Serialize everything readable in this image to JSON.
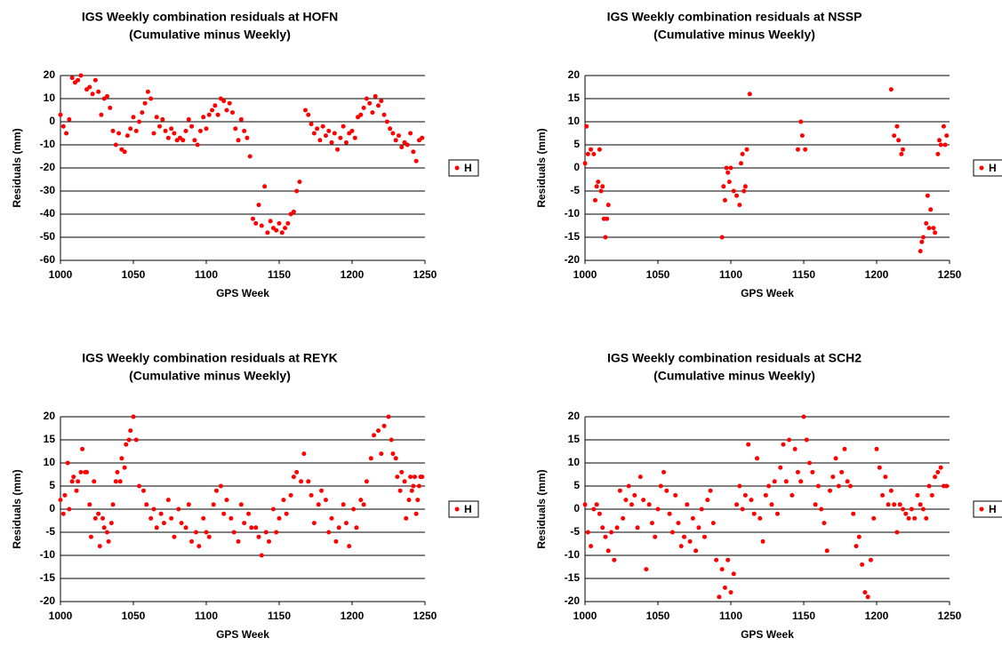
{
  "chart_data": [
    {
      "type": "scatter",
      "title": "IGS Weekly combination residuals at HOFN",
      "subtitle": "(Cumulative minus Weekly)",
      "x_label": "GPS Week",
      "y_label": "Residuals (mm)",
      "x": [
        1000,
        1002,
        1004,
        1006,
        1008,
        1010,
        1012,
        1014,
        1018,
        1020,
        1022,
        1024,
        1026,
        1028,
        1030,
        1032,
        1034,
        1036,
        1038,
        1040,
        1042,
        1044,
        1046,
        1048,
        1050,
        1052,
        1054,
        1056,
        1058,
        1060,
        1062,
        1064,
        1066,
        1068,
        1070,
        1072,
        1074,
        1076,
        1078,
        1080,
        1082,
        1084,
        1086,
        1088,
        1090,
        1092,
        1094,
        1096,
        1098,
        1100,
        1102,
        1104,
        1106,
        1108,
        1110,
        1112,
        1114,
        1116,
        1118,
        1120,
        1122,
        1124,
        1126,
        1128,
        1130,
        1132,
        1134,
        1136,
        1138,
        1140,
        1142,
        1144,
        1146,
        1148,
        1150,
        1152,
        1154,
        1156,
        1158,
        1160,
        1162,
        1164,
        1168,
        1170,
        1172,
        1174,
        1176,
        1178,
        1180,
        1182,
        1184,
        1186,
        1188,
        1190,
        1192,
        1194,
        1196,
        1198,
        1200,
        1202,
        1204,
        1206,
        1208,
        1210,
        1212,
        1214,
        1216,
        1218,
        1220,
        1222,
        1224,
        1226,
        1228,
        1230,
        1232,
        1234,
        1236,
        1238,
        1240,
        1242,
        1244,
        1246,
        1248
      ],
      "series": [
        {
          "name": "H",
          "color": "#ff0000",
          "values": [
            3,
            -2,
            -5,
            1,
            19,
            17,
            18,
            20,
            14,
            15,
            12,
            18,
            13,
            3,
            10,
            11,
            6,
            -4,
            -10,
            -5,
            -12,
            -13,
            -6,
            -3,
            2,
            -4,
            0,
            4,
            8,
            13,
            10,
            -5,
            2,
            -2,
            1,
            -4,
            -7,
            -3,
            -5,
            -8,
            -7,
            -8,
            -4,
            1,
            -2,
            -8,
            -10,
            -4,
            2,
            -3,
            3,
            5,
            7,
            3,
            10,
            9,
            5,
            8,
            4,
            -3,
            -8,
            1,
            -4,
            -7,
            -15,
            -42,
            -44,
            -36,
            -45,
            -28,
            -48,
            -43,
            -46,
            -47,
            -44,
            -48,
            -46,
            -44,
            -40,
            -39,
            -30,
            -26,
            5,
            3,
            -1,
            -5,
            -3,
            -8,
            -2,
            -6,
            -4,
            -9,
            -5,
            -12,
            -7,
            -2,
            -9,
            -5,
            -4,
            -7,
            2,
            3,
            6,
            10,
            8,
            4,
            11,
            7,
            9,
            3,
            0,
            -3,
            -5,
            -8,
            -6,
            -11,
            -9,
            -10,
            -5,
            -13,
            -17,
            -8,
            -7
          ]
        }
      ],
      "xlim": [
        1000,
        1250
      ],
      "xticks": [
        1000,
        1050,
        1100,
        1150,
        1200,
        1250
      ],
      "ylim": [
        -60,
        20
      ],
      "yticks": [
        -60,
        -50,
        -40,
        -30,
        -20,
        -10,
        0,
        10,
        20
      ],
      "grid": true,
      "legend": "right"
    },
    {
      "type": "scatter",
      "title": "IGS Weekly combination residuals at NSSP",
      "subtitle": "(Cumulative minus Weekly)",
      "x_label": "GPS Week",
      "y_label": "Residuals (mm)",
      "x": [
        1000,
        1001,
        1002,
        1004,
        1006,
        1007,
        1008,
        1009,
        1010,
        1011,
        1012,
        1013,
        1014,
        1015,
        1016,
        1094,
        1095,
        1096,
        1097,
        1098,
        1099,
        1100,
        1102,
        1104,
        1106,
        1107,
        1108,
        1109,
        1110,
        1111,
        1113,
        1146,
        1148,
        1149,
        1151,
        1210,
        1212,
        1214,
        1215,
        1217,
        1218,
        1230,
        1231,
        1232,
        1234,
        1235,
        1236,
        1237,
        1239,
        1240,
        1242,
        1243,
        1244,
        1246,
        1247,
        1248
      ],
      "series": [
        {
          "name": "H",
          "color": "#ff0000",
          "values": [
            1,
            9,
            3,
            4,
            3,
            -7,
            -4,
            -3,
            4,
            -5,
            -4,
            -11,
            -15,
            -11,
            -8,
            -15,
            -4,
            -7,
            0,
            -1,
            -3,
            0,
            -5,
            -6,
            -8,
            1,
            3,
            -5,
            -4,
            4,
            16,
            4,
            10,
            7,
            4,
            17,
            7,
            9,
            6,
            3,
            4,
            -18,
            -16,
            -15,
            -12,
            -6,
            -13,
            -9,
            -13,
            -14,
            3,
            6,
            5,
            9,
            5,
            7
          ]
        }
      ],
      "xlim": [
        1000,
        1250
      ],
      "xticks": [
        1000,
        1050,
        1100,
        1150,
        1200,
        1250
      ],
      "ylim": [
        -20,
        20
      ],
      "yticks": [
        -20,
        -15,
        -10,
        -5,
        0,
        5,
        10,
        15,
        20
      ],
      "grid": true,
      "legend": "right"
    },
    {
      "type": "scatter",
      "title": "IGS Weekly combination residuals at REYK",
      "subtitle": "(Cumulative minus Weekly)",
      "x_label": "GPS Week",
      "y_label": "Residuals (mm)",
      "x": [
        1000,
        1002,
        1003,
        1005,
        1006,
        1008,
        1009,
        1011,
        1012,
        1014,
        1015,
        1017,
        1018,
        1020,
        1021,
        1023,
        1024,
        1026,
        1027,
        1029,
        1030,
        1032,
        1033,
        1035,
        1036,
        1038,
        1039,
        1041,
        1042,
        1044,
        1045,
        1047,
        1048,
        1050,
        1052,
        1054,
        1057,
        1059,
        1062,
        1064,
        1066,
        1069,
        1071,
        1074,
        1076,
        1078,
        1081,
        1083,
        1086,
        1088,
        1090,
        1093,
        1095,
        1098,
        1100,
        1102,
        1105,
        1107,
        1110,
        1112,
        1114,
        1117,
        1119,
        1122,
        1124,
        1126,
        1129,
        1131,
        1134,
        1136,
        1138,
        1141,
        1143,
        1146,
        1148,
        1150,
        1153,
        1155,
        1158,
        1160,
        1162,
        1165,
        1167,
        1170,
        1172,
        1174,
        1177,
        1179,
        1182,
        1184,
        1186,
        1189,
        1191,
        1194,
        1196,
        1198,
        1201,
        1203,
        1206,
        1208,
        1210,
        1213,
        1215,
        1218,
        1220,
        1222,
        1225,
        1227,
        1228,
        1230,
        1231,
        1233,
        1234,
        1236,
        1237,
        1239,
        1240,
        1241,
        1242,
        1243,
        1244,
        1245,
        1246,
        1247,
        1248
      ],
      "series": [
        {
          "name": "H",
          "color": "#ff0000",
          "values": [
            2,
            -1,
            3,
            10,
            0,
            6,
            7,
            4,
            6,
            8,
            13,
            8,
            8,
            1,
            -6,
            6,
            -2,
            -1,
            -8,
            -2,
            -4,
            -5,
            -7,
            -3,
            1,
            6,
            8,
            6,
            11,
            9,
            14,
            15,
            17,
            20,
            15,
            5,
            4,
            1,
            -2,
            0,
            -4,
            -1,
            -3,
            2,
            -2,
            -6,
            0,
            -3,
            -4,
            1,
            -7,
            -5,
            -8,
            -2,
            -5,
            -6,
            1,
            4,
            5,
            -1,
            2,
            -2,
            -5,
            -7,
            1,
            -3,
            -1,
            -4,
            -4,
            -6,
            -10,
            -5,
            -7,
            0,
            -5,
            -2,
            2,
            -1,
            3,
            7,
            8,
            6,
            12,
            6,
            3,
            -3,
            1,
            4,
            2,
            -5,
            -2,
            -7,
            -4,
            1,
            -3,
            -8,
            0,
            -4,
            2,
            1,
            6,
            11,
            16,
            17,
            12,
            18,
            20,
            15,
            12,
            11,
            7,
            4,
            8,
            6,
            -2,
            2,
            7,
            4,
            5,
            7,
            -1,
            2,
            5,
            7,
            7
          ]
        }
      ],
      "xlim": [
        1000,
        1250
      ],
      "xticks": [
        1000,
        1050,
        1100,
        1150,
        1200,
        1250
      ],
      "ylim": [
        -20,
        20
      ],
      "yticks": [
        -20,
        -15,
        -10,
        -5,
        0,
        5,
        10,
        15,
        20
      ],
      "grid": true,
      "legend": "right"
    },
    {
      "type": "scatter",
      "title": "IGS Weekly combination residuals at SCH2",
      "subtitle": "(Cumulative minus Weekly)",
      "x_label": "GPS Week",
      "y_label": "Residuals (mm)",
      "x": [
        1000,
        1002,
        1004,
        1006,
        1008,
        1010,
        1012,
        1014,
        1016,
        1018,
        1020,
        1022,
        1024,
        1026,
        1028,
        1030,
        1032,
        1034,
        1036,
        1038,
        1040,
        1042,
        1044,
        1046,
        1048,
        1050,
        1052,
        1054,
        1056,
        1058,
        1060,
        1062,
        1064,
        1066,
        1068,
        1070,
        1072,
        1074,
        1076,
        1078,
        1080,
        1082,
        1084,
        1086,
        1088,
        1090,
        1092,
        1094,
        1096,
        1098,
        1100,
        1102,
        1104,
        1106,
        1108,
        1110,
        1112,
        1114,
        1116,
        1118,
        1120,
        1122,
        1124,
        1126,
        1128,
        1130,
        1132,
        1134,
        1136,
        1138,
        1140,
        1142,
        1144,
        1146,
        1148,
        1150,
        1152,
        1154,
        1156,
        1158,
        1160,
        1162,
        1164,
        1166,
        1168,
        1170,
        1172,
        1174,
        1176,
        1178,
        1180,
        1182,
        1184,
        1186,
        1188,
        1190,
        1192,
        1194,
        1196,
        1198,
        1200,
        1202,
        1204,
        1206,
        1208,
        1210,
        1212,
        1214,
        1216,
        1218,
        1220,
        1222,
        1224,
        1226,
        1228,
        1230,
        1232,
        1234,
        1236,
        1238,
        1240,
        1242,
        1244,
        1246,
        1248
      ],
      "series": [
        {
          "name": "H",
          "color": "#ff0000",
          "values": [
            1,
            -5,
            -8,
            0,
            1,
            -1,
            -4,
            -6,
            -9,
            -5,
            -11,
            -4,
            4,
            -2,
            2,
            5,
            1,
            3,
            -4,
            7,
            2,
            -13,
            1,
            -3,
            -6,
            0,
            5,
            8,
            4,
            -1,
            -5,
            3,
            -3,
            -8,
            -6,
            1,
            -7,
            -2,
            -9,
            -4,
            0,
            -6,
            2,
            4,
            -3,
            -11,
            -19,
            -13,
            -17,
            -11,
            -18,
            -14,
            1,
            5,
            0,
            3,
            14,
            2,
            -1,
            11,
            -2,
            -7,
            3,
            5,
            1,
            6,
            -1,
            9,
            14,
            6,
            15,
            3,
            13,
            8,
            6,
            20,
            15,
            10,
            8,
            1,
            5,
            0,
            -3,
            -9,
            4,
            7,
            11,
            5,
            8,
            13,
            6,
            5,
            -1,
            -8,
            -6,
            -12,
            -18,
            -19,
            -11,
            -2,
            13,
            9,
            3,
            7,
            1,
            4,
            1,
            -5,
            1,
            0,
            -1,
            -2,
            0,
            -2,
            3,
            1,
            0,
            -2,
            5,
            3,
            7,
            8,
            9,
            5,
            5
          ]
        }
      ],
      "xlim": [
        1000,
        1250
      ],
      "xticks": [
        1000,
        1050,
        1100,
        1150,
        1200,
        1250
      ],
      "ylim": [
        -20,
        20
      ],
      "yticks": [
        -20,
        -15,
        -10,
        -5,
        0,
        5,
        10,
        15,
        20
      ],
      "grid": true,
      "legend": "right"
    }
  ]
}
